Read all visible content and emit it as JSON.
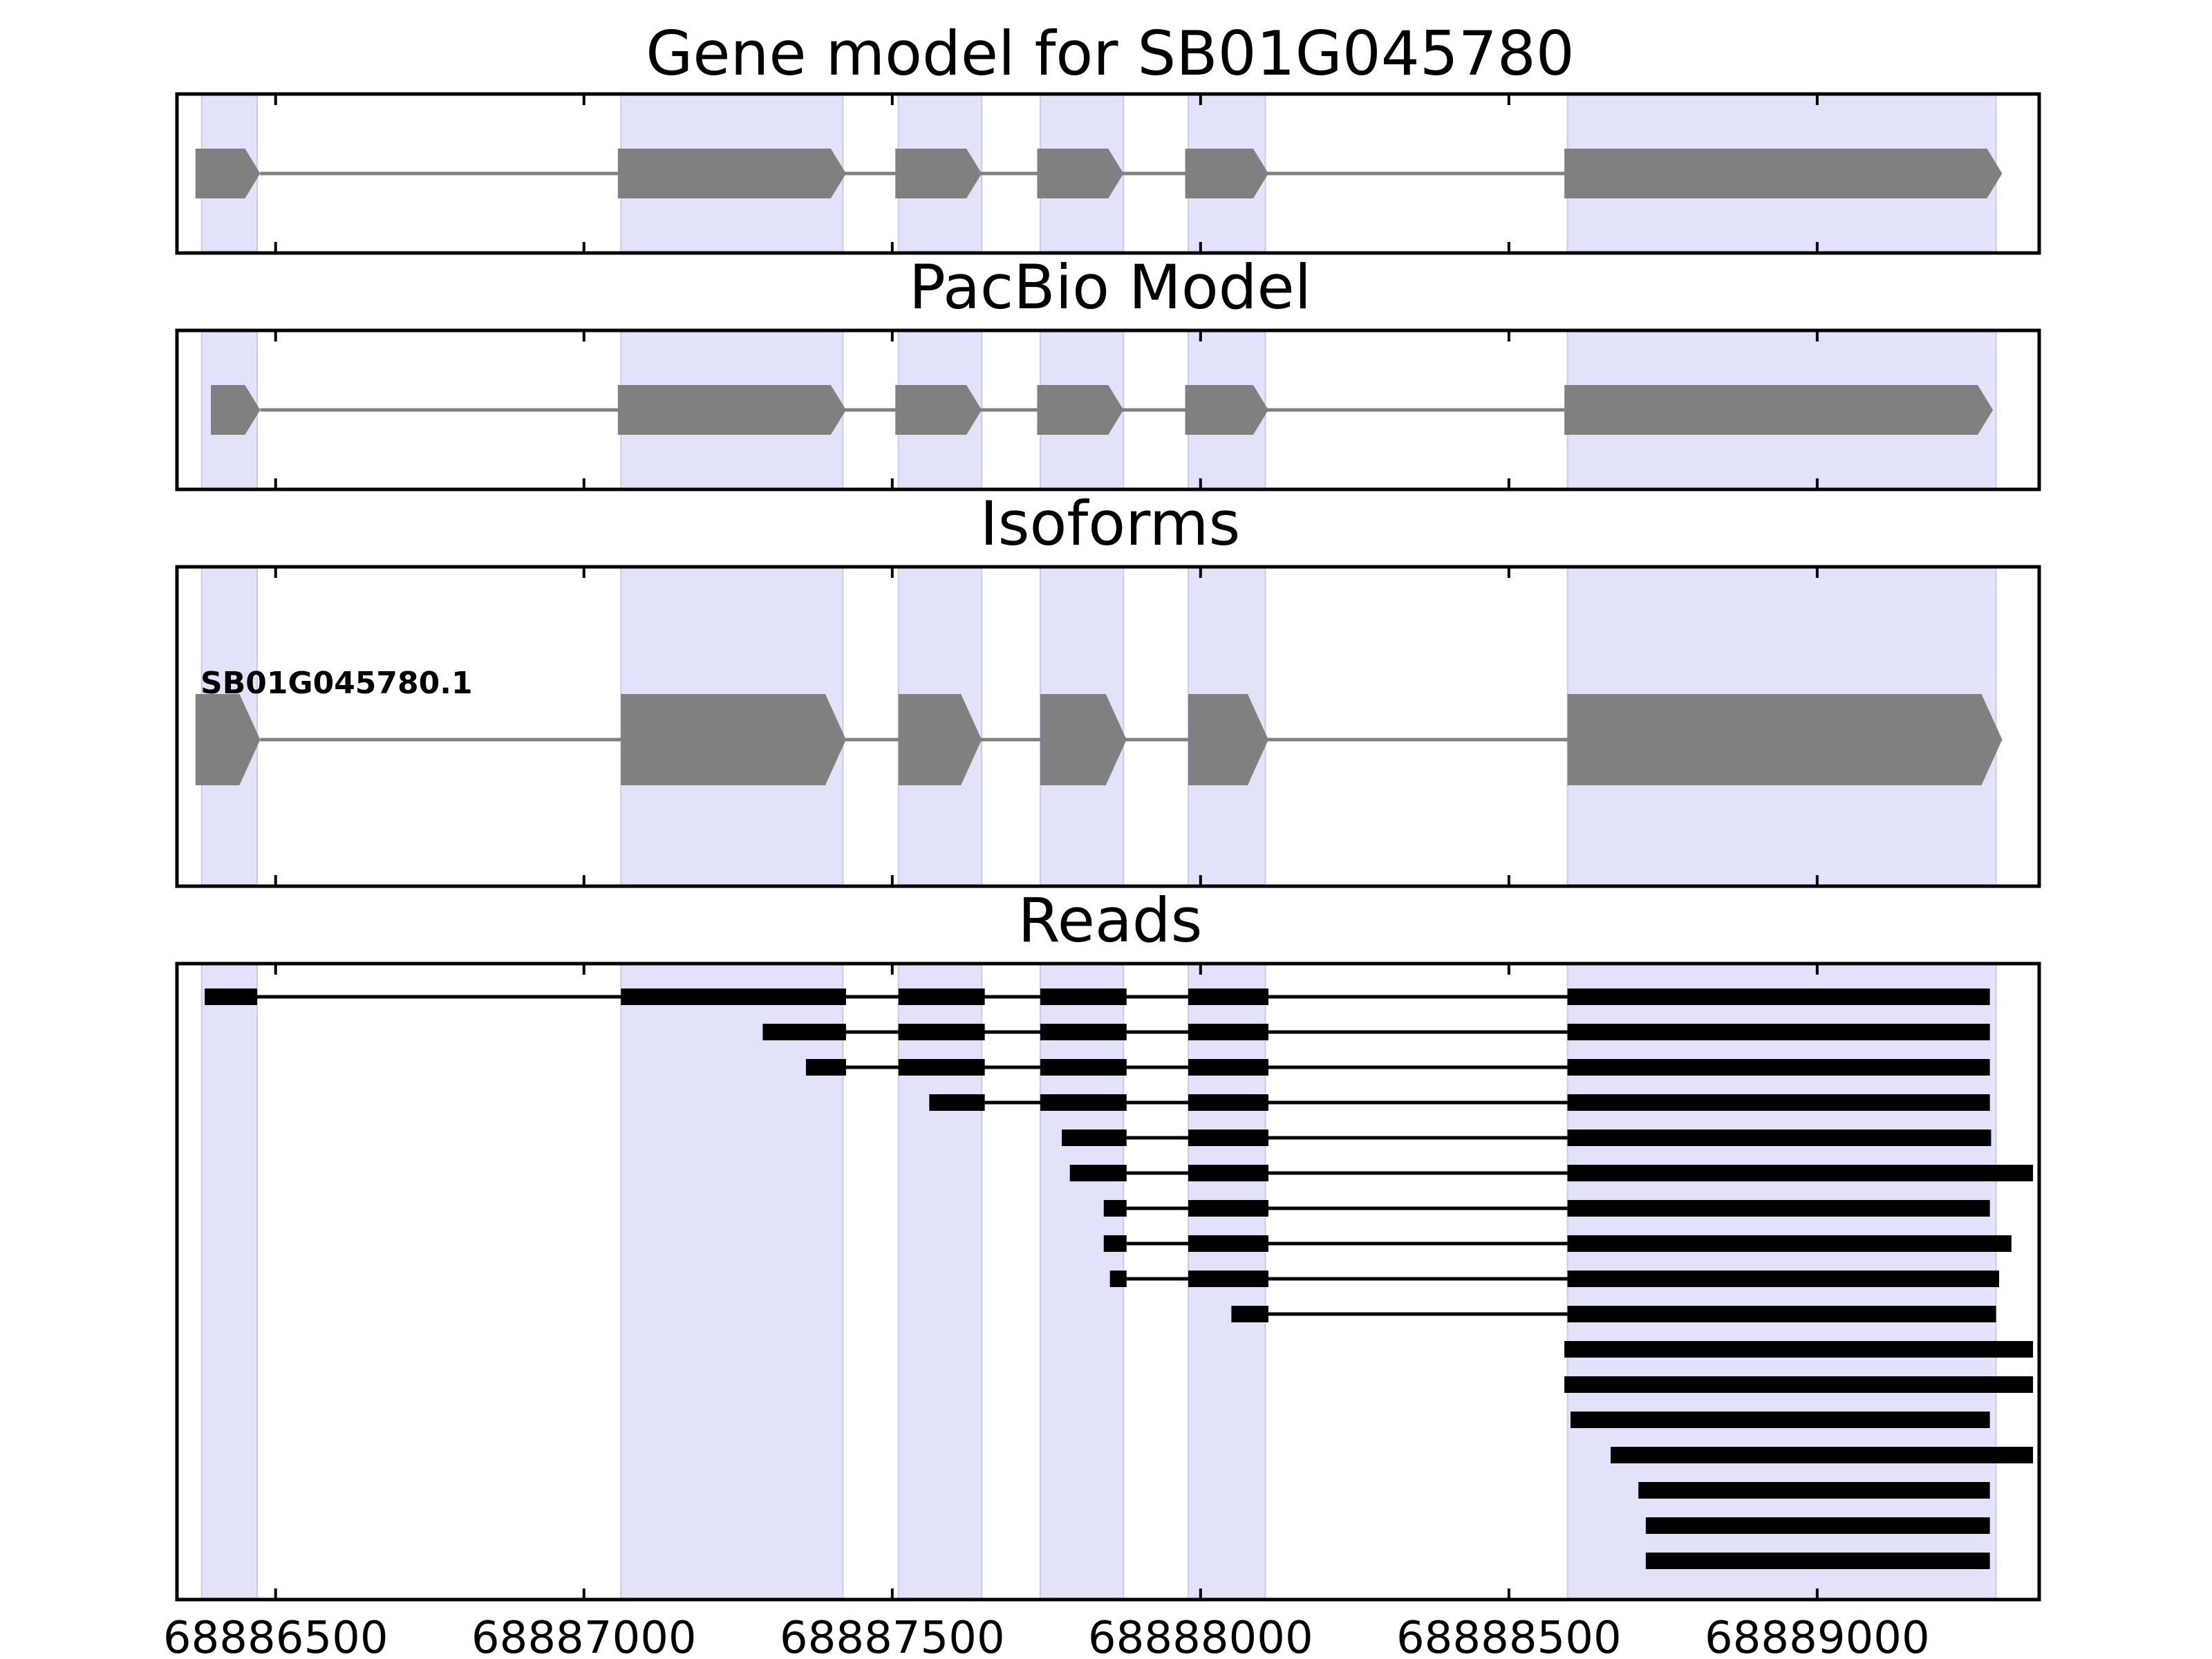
{
  "chart_data": {
    "type": "gene-structure",
    "xlim": [
      68886340,
      68889360
    ],
    "x_ticks": [
      68886500,
      68887000,
      68887500,
      68888000,
      68888500,
      68889000
    ],
    "x_tick_labels": [
      "68886500",
      "68887000",
      "68887500",
      "68888000",
      "68888500",
      "68889000"
    ],
    "exon_bands": [
      [
        68886380,
        68886470
      ],
      [
        68887060,
        68887420
      ],
      [
        68887510,
        68887645
      ],
      [
        68887740,
        68887875
      ],
      [
        68887980,
        68888105
      ],
      [
        68888595,
        68889290
      ]
    ],
    "panels": [
      {
        "id": "gene-model",
        "title": "Gene model for SB01G045780",
        "strand": "+",
        "exons": [
          [
            68886370,
            68886475
          ],
          [
            68887055,
            68887425
          ],
          [
            68887505,
            68887645
          ],
          [
            68887735,
            68887875
          ],
          [
            68887975,
            68888110
          ],
          [
            68888590,
            68889300
          ]
        ]
      },
      {
        "id": "pacbio-model",
        "title": "PacBio Model",
        "strand": "+",
        "exons": [
          [
            68886395,
            68886475
          ],
          [
            68887055,
            68887425
          ],
          [
            68887505,
            68887645
          ],
          [
            68887735,
            68887875
          ],
          [
            68887975,
            68888110
          ],
          [
            68888590,
            68889285
          ]
        ]
      },
      {
        "id": "isoforms",
        "title": "Isoforms",
        "strand": "+",
        "isoforms": [
          {
            "name": "SB01G045780.1",
            "exons": [
              [
                68886370,
                68886475
              ],
              [
                68887060,
                68887425
              ],
              [
                68887510,
                68887645
              ],
              [
                68887740,
                68887880
              ],
              [
                68887980,
                68888110
              ],
              [
                68888595,
                68889300
              ]
            ]
          }
        ]
      },
      {
        "id": "reads",
        "title": "Reads",
        "reads": [
          [
            [
              68886385,
              68886470
            ],
            [
              68887060,
              68887425
            ],
            [
              68887510,
              68887650
            ],
            [
              68887740,
              68887880
            ],
            [
              68887980,
              68888110
            ],
            [
              68888595,
              68889280
            ]
          ],
          [
            [
              68887290,
              68887425
            ],
            [
              68887510,
              68887650
            ],
            [
              68887740,
              68887880
            ],
            [
              68887980,
              68888110
            ],
            [
              68888595,
              68889280
            ]
          ],
          [
            [
              68887360,
              68887425
            ],
            [
              68887510,
              68887650
            ],
            [
              68887740,
              68887880
            ],
            [
              68887980,
              68888110
            ],
            [
              68888595,
              68889280
            ]
          ],
          [
            [
              68887560,
              68887650
            ],
            [
              68887740,
              68887880
            ],
            [
              68887980,
              68888110
            ],
            [
              68888595,
              68889280
            ]
          ],
          [
            [
              68887775,
              68887880
            ],
            [
              68887980,
              68888110
            ],
            [
              68888595,
              68889282
            ]
          ],
          [
            [
              68887788,
              68887880
            ],
            [
              68887980,
              68888110
            ],
            [
              68888595,
              68889350
            ]
          ],
          [
            [
              68887843,
              68887880
            ],
            [
              68887980,
              68888110
            ],
            [
              68888595,
              68889280
            ]
          ],
          [
            [
              68887843,
              68887880
            ],
            [
              68887980,
              68888110
            ],
            [
              68888595,
              68889315
            ]
          ],
          [
            [
              68887853,
              68887880
            ],
            [
              68887980,
              68888110
            ],
            [
              68888595,
              68889295
            ]
          ],
          [
            [
              68888050,
              68888110
            ],
            [
              68888595,
              68889290
            ]
          ],
          [
            [
              68888590,
              68889350
            ]
          ],
          [
            [
              68888590,
              68889350
            ]
          ],
          [
            [
              68888600,
              68889280
            ]
          ],
          [
            [
              68888665,
              68889350
            ]
          ],
          [
            [
              68888710,
              68889280
            ]
          ],
          [
            [
              68888722,
              68889280
            ]
          ],
          [
            [
              68888722,
              68889280
            ]
          ]
        ]
      }
    ]
  }
}
